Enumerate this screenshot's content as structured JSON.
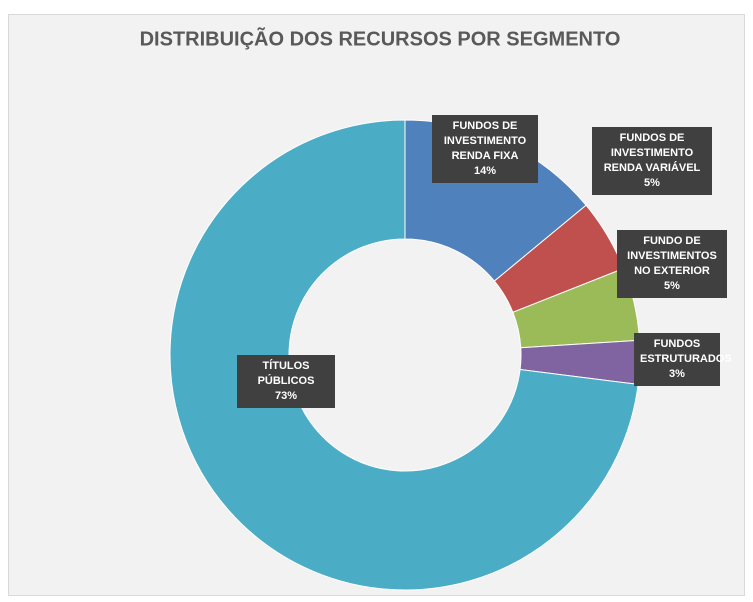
{
  "chart_data": {
    "type": "donut",
    "title": "DISTRIBUIÇÃO DOS RECURSOS POR SEGMENTO",
    "categories": [
      "FUNDOS DE INVESTIMENTO RENDA FIXA",
      "FUNDOS DE INVESTIMENTO RENDA VARIÁVEL",
      "FUNDO DE INVESTIMENTOS NO EXTERIOR",
      "FUNDOS ESTRUTURADOS",
      "TÍTULOS PÚBLICOS"
    ],
    "values": [
      14,
      5,
      5,
      3,
      73
    ],
    "value_labels": [
      "14%",
      "5%",
      "5%",
      "3%",
      "73%"
    ],
    "colors": [
      "#4f81bd",
      "#c0504d",
      "#9bbb59",
      "#8064a2",
      "#4bacc6"
    ]
  }
}
